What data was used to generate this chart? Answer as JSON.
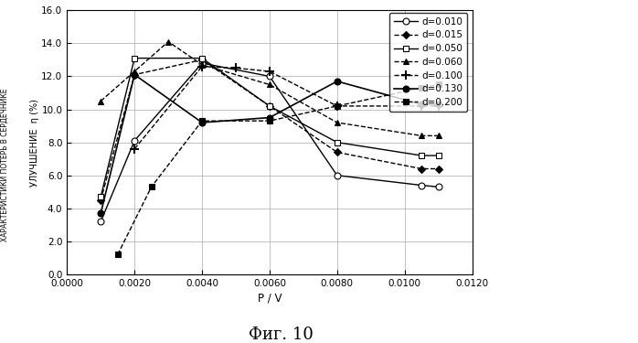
{
  "title": "Фиг. 10",
  "xlabel": "P / V",
  "xlim": [
    0.0,
    0.012
  ],
  "ylim": [
    0.0,
    16.0
  ],
  "xticks": [
    0.0,
    0.002,
    0.004,
    0.006,
    0.008,
    0.01,
    0.012
  ],
  "yticks": [
    0.0,
    2.0,
    4.0,
    6.0,
    8.0,
    10.0,
    12.0,
    14.0,
    16.0
  ],
  "series": [
    {
      "label": "d=0.010",
      "color": "black",
      "linestyle": "-",
      "marker": "o",
      "markerfacecolor": "white",
      "markersize": 5,
      "linewidth": 1.0,
      "x": [
        0.001,
        0.002,
        0.004,
        0.006,
        0.008,
        0.0105,
        0.011
      ],
      "y": [
        3.2,
        8.1,
        12.8,
        12.0,
        6.0,
        5.4,
        5.3
      ]
    },
    {
      "label": "d=0.015",
      "color": "black",
      "linestyle": "--",
      "marker": "D",
      "markerfacecolor": "black",
      "markersize": 4,
      "linewidth": 1.0,
      "x": [
        0.001,
        0.002,
        0.004,
        0.006,
        0.008,
        0.0105,
        0.011
      ],
      "y": [
        4.5,
        12.1,
        13.0,
        10.2,
        7.4,
        6.4,
        6.4
      ]
    },
    {
      "label": "d=0.050",
      "color": "black",
      "linestyle": "-",
      "marker": "s",
      "markerfacecolor": "white",
      "markersize": 5,
      "linewidth": 1.0,
      "x": [
        0.001,
        0.002,
        0.004,
        0.006,
        0.008,
        0.0105,
        0.011
      ],
      "y": [
        4.7,
        13.1,
        13.1,
        10.2,
        8.0,
        7.2,
        7.2
      ]
    },
    {
      "label": "d=0.060",
      "color": "black",
      "linestyle": "--",
      "marker": "^",
      "markerfacecolor": "black",
      "markersize": 5,
      "linewidth": 1.0,
      "x": [
        0.001,
        0.002,
        0.003,
        0.004,
        0.006,
        0.008,
        0.0105,
        0.011
      ],
      "y": [
        10.5,
        12.3,
        14.1,
        12.7,
        11.5,
        9.2,
        8.4,
        8.4
      ]
    },
    {
      "label": "d=0.100",
      "color": "black",
      "linestyle": "--",
      "marker": "+",
      "markerfacecolor": "black",
      "markersize": 7,
      "linewidth": 1.0,
      "markeredgewidth": 1.5,
      "x": [
        0.002,
        0.004,
        0.005,
        0.006,
        0.008,
        0.0105,
        0.011
      ],
      "y": [
        7.6,
        12.6,
        12.5,
        12.3,
        10.2,
        10.2,
        10.2
      ]
    },
    {
      "label": "d=0.130",
      "color": "black",
      "linestyle": "-",
      "marker": "o",
      "markerfacecolor": "black",
      "markersize": 5,
      "linewidth": 1.2,
      "x": [
        0.001,
        0.002,
        0.004,
        0.006,
        0.008,
        0.0105,
        0.011
      ],
      "y": [
        3.7,
        12.1,
        9.2,
        9.5,
        11.7,
        10.3,
        10.3
      ]
    },
    {
      "label": "d=0.200",
      "color": "black",
      "linestyle": "--",
      "marker": "s",
      "markerfacecolor": "black",
      "markersize": 5,
      "linewidth": 1.0,
      "x": [
        0.0015,
        0.0025,
        0.004,
        0.006,
        0.008,
        0.0105,
        0.011
      ],
      "y": [
        1.2,
        5.3,
        9.3,
        9.3,
        10.2,
        11.3,
        11.5
      ]
    }
  ],
  "background_color": "white",
  "grid_color": "#aaaaaa",
  "ylabel_inner": "УЛУЧШЕНИЕ  η (%)",
  "ylabel_outer": "ХАРАКТЕРИСТИКИ ПОТЕРЬ В СЕРДЕЧНИКЕ"
}
